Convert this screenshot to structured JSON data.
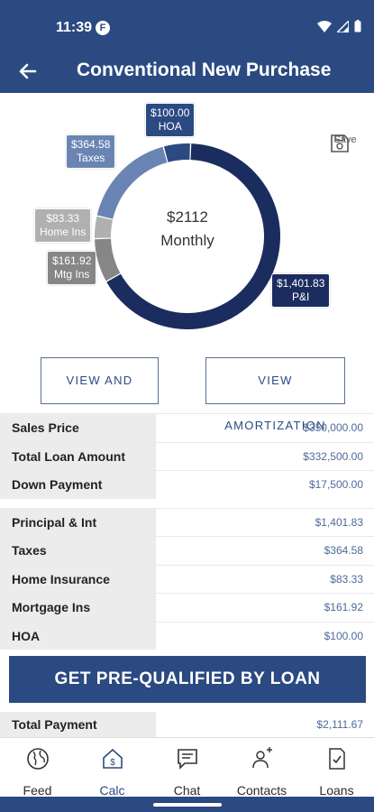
{
  "status_bar": {
    "time": "11:39",
    "app_badge": "F"
  },
  "header": {
    "title": "Conventional New Purchase"
  },
  "chart_data": {
    "type": "pie",
    "center_amount": "$2112",
    "center_label": "Monthly",
    "slices": [
      {
        "name": "P&I",
        "label": "$1,401.83",
        "value": 1401.83,
        "color": "#1b2d5e"
      },
      {
        "name": "Mtg Ins",
        "label": "$161.92",
        "value": 161.92,
        "color": "#868686"
      },
      {
        "name": "Home Ins",
        "label": "$83.33",
        "value": 83.33,
        "color": "#b0b0b0"
      },
      {
        "name": "Taxes",
        "label": "$364.58",
        "value": 364.58,
        "color": "#6a85b3"
      },
      {
        "name": "HOA",
        "label": "$100.00",
        "value": 100.0,
        "color": "#2b4a82"
      }
    ]
  },
  "save_label": "Save",
  "buttons": {
    "view_share": "VIEW AND SHARE",
    "view_amort": "VIEW AMORTIZATION",
    "prequal": "GET PRE-QUALIFIED BY LOAN"
  },
  "loan_rows": [
    {
      "label": "Sales Price",
      "value": "$350,000.00"
    },
    {
      "label": "Total Loan Amount",
      "value": "$332,500.00"
    },
    {
      "label": "Down Payment",
      "value": "$17,500.00"
    }
  ],
  "payment_rows": [
    {
      "label": "Principal & Int",
      "value": "$1,401.83"
    },
    {
      "label": "Taxes",
      "value": "$364.58"
    },
    {
      "label": "Home Insurance",
      "value": "$83.33"
    },
    {
      "label": "Mortgage Ins",
      "value": "$161.92"
    },
    {
      "label": "HOA",
      "value": "$100.00"
    }
  ],
  "total": {
    "label": "Total Payment",
    "value": "$2,111.67"
  },
  "nav": [
    {
      "label": "Feed",
      "icon": "globe-icon"
    },
    {
      "label": "Calc",
      "icon": "calculator-house-icon"
    },
    {
      "label": "Chat",
      "icon": "chat-icon"
    },
    {
      "label": "Contacts",
      "icon": "contacts-icon"
    },
    {
      "label": "Loans",
      "icon": "document-check-icon"
    }
  ],
  "colors": {
    "brand": "#2b4a82",
    "value_text": "#4d6a9c",
    "label_bg": "#ececec"
  }
}
